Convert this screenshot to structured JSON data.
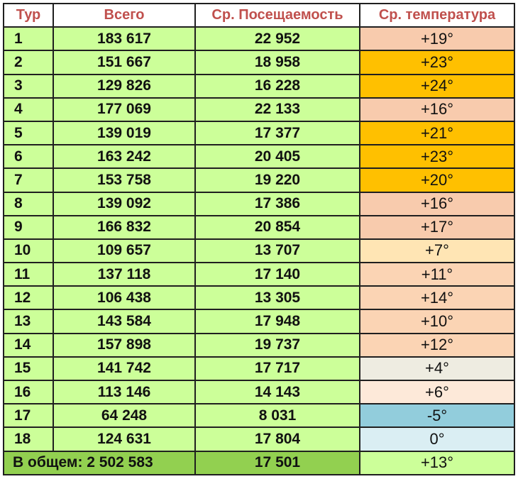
{
  "headers": [
    "Тур",
    "Всего",
    "Ср. Посещаемость",
    "Ср. температура"
  ],
  "rows": [
    {
      "tour": "1",
      "total": "183 617",
      "avg": "22 952",
      "temp": "+19°",
      "temp_color": "#f8cbad"
    },
    {
      "tour": "2",
      "total": "151 667",
      "avg": "18 958",
      "temp": "+23°",
      "temp_color": "#ffc000"
    },
    {
      "tour": "3",
      "total": "129 826",
      "avg": "16 228",
      "temp": "+24°",
      "temp_color": "#ffc000"
    },
    {
      "tour": "4",
      "total": "177 069",
      "avg": "22 133",
      "temp": "+16°",
      "temp_color": "#f8cbad"
    },
    {
      "tour": "5",
      "total": "139 019",
      "avg": "17 377",
      "temp": "+21°",
      "temp_color": "#ffc000"
    },
    {
      "tour": "6",
      "total": "163 242",
      "avg": "20 405",
      "temp": "+23°",
      "temp_color": "#ffc000"
    },
    {
      "tour": "7",
      "total": "153 758",
      "avg": "19 220",
      "temp": "+20°",
      "temp_color": "#ffc000"
    },
    {
      "tour": "8",
      "total": "139 092",
      "avg": "17 386",
      "temp": "+16°",
      "temp_color": "#f8cbad"
    },
    {
      "tour": "9",
      "total": "166 832",
      "avg": "20 854",
      "temp": "+17°",
      "temp_color": "#f8cbad"
    },
    {
      "tour": "10",
      "total": "109 657",
      "avg": "13 707",
      "temp": "+7°",
      "temp_color": "#ffe5b4"
    },
    {
      "tour": "11",
      "total": "137 118",
      "avg": "17 140",
      "temp": "+11°",
      "temp_color": "#fbd4b4"
    },
    {
      "tour": "12",
      "total": "106 438",
      "avg": "13 305",
      "temp": "+14°",
      "temp_color": "#fbd4b4"
    },
    {
      "tour": "13",
      "total": "143 584",
      "avg": "17 948",
      "temp": "+10°",
      "temp_color": "#fbd4b4"
    },
    {
      "tour": "14",
      "total": "157 898",
      "avg": "19 737",
      "temp": "+12°",
      "temp_color": "#fbd4b4"
    },
    {
      "tour": "15",
      "total": "141 742",
      "avg": "17 717",
      "temp": "+4°",
      "temp_color": "#eeece1"
    },
    {
      "tour": "16",
      "total": "113 146",
      "avg": "14 143",
      "temp": "+6°",
      "temp_color": "#fde9d9"
    },
    {
      "tour": "17",
      "total": "64 248",
      "avg": "8 031",
      "temp": "-5°",
      "temp_color": "#92cddc"
    },
    {
      "tour": "18",
      "total": "124 631",
      "avg": "17 804",
      "temp": "0°",
      "temp_color": "#daeef3"
    }
  ],
  "summary": {
    "label": "В общем: 2 502 583",
    "avg": "17 501",
    "temp": "+13°",
    "temp_color": "#ccff99"
  }
}
